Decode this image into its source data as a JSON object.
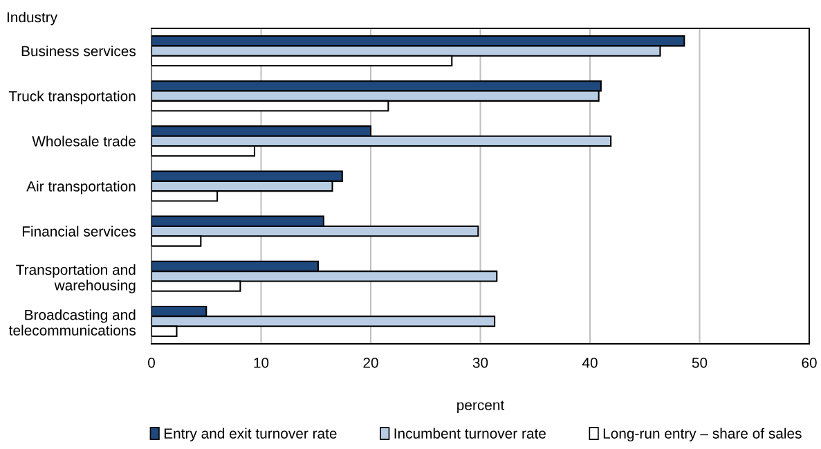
{
  "chart_data": {
    "type": "bar",
    "orientation": "horizontal",
    "xlabel": "percent",
    "ylabel": "Industry",
    "categories": [
      "Business services",
      "Truck transportation",
      "Wholesale trade",
      "Air transportation",
      "Financial services",
      "Transportation and\nwarehousing",
      "Broadcasting and\ntelecommunications"
    ],
    "series": [
      {
        "name": "Entry and exit turnover rate",
        "color": "#1f497d",
        "values": [
          48.6,
          41.0,
          20.0,
          17.4,
          15.7,
          15.2,
          5.0
        ]
      },
      {
        "name": "Incumbent turnover rate",
        "color": "#b8cce4",
        "values": [
          46.4,
          40.8,
          41.9,
          16.5,
          29.8,
          31.5,
          31.3
        ]
      },
      {
        "name": "Long-run entry – share of sales",
        "color": "#ffffff",
        "values": [
          27.4,
          21.6,
          9.4,
          6.0,
          4.5,
          8.1,
          2.3
        ]
      }
    ],
    "xlim": [
      0,
      60
    ],
    "xticks": [
      0,
      10,
      20,
      30,
      40,
      50,
      60
    ],
    "grid": "x",
    "legend": "bottom"
  }
}
